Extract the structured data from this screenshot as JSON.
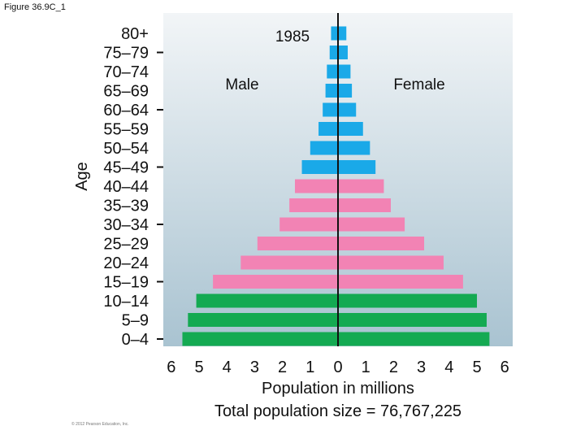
{
  "figure_label": "Figure 36.9C_1",
  "copyright": "© 2012 Pearson Education, Inc.",
  "chart_data": {
    "type": "population-pyramid",
    "title": "1985",
    "left_series_label": "Male",
    "right_series_label": "Female",
    "ylabel": "Age",
    "xlabel": "Population in millions",
    "footer": "Total population size = 76,767,225",
    "x_ticks": [
      "6",
      "5",
      "4",
      "3",
      "2",
      "1",
      "0",
      "1",
      "2",
      "3",
      "4",
      "5",
      "6"
    ],
    "xlim": [
      -6,
      6
    ],
    "age_groups": [
      "80+",
      "75–79",
      "70–74",
      "65–69",
      "60–64",
      "55–59",
      "50–54",
      "45–49",
      "40–44",
      "35–39",
      "30–34",
      "25–29",
      "20–24",
      "15–19",
      "10–14",
      "5–9",
      "0–4"
    ],
    "male": [
      0.25,
      0.3,
      0.4,
      0.45,
      0.55,
      0.7,
      1.0,
      1.3,
      1.55,
      1.75,
      2.1,
      2.9,
      3.5,
      4.5,
      5.1,
      5.4,
      5.6
    ],
    "female": [
      0.3,
      0.35,
      0.45,
      0.5,
      0.65,
      0.9,
      1.15,
      1.35,
      1.65,
      1.9,
      2.4,
      3.1,
      3.8,
      4.5,
      5.0,
      5.35,
      5.45
    ],
    "group_colors": {
      "post-reproductive": "#1aa9e8",
      "reproductive": "#f283b4",
      "pre-reproductive": "#14aa52"
    },
    "group_of_age": [
      "post-reproductive",
      "post-reproductive",
      "post-reproductive",
      "post-reproductive",
      "post-reproductive",
      "post-reproductive",
      "post-reproductive",
      "post-reproductive",
      "reproductive",
      "reproductive",
      "reproductive",
      "reproductive",
      "reproductive",
      "reproductive",
      "pre-reproductive",
      "pre-reproductive",
      "pre-reproductive"
    ],
    "background_top": "#f2f5f7",
    "background_bottom": "#a9c3d1"
  }
}
